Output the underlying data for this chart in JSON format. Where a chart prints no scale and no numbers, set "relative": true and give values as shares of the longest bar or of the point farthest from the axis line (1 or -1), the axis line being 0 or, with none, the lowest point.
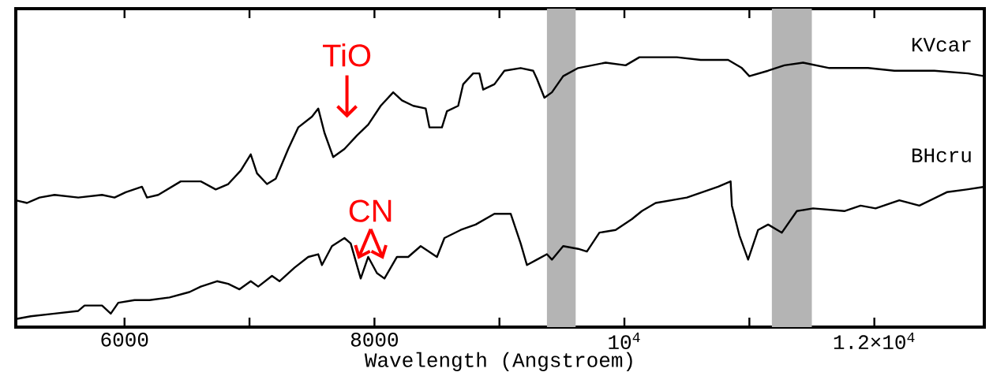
{
  "chart_data": {
    "type": "line",
    "relative": true,
    "xlabel": "Wavelength (Angstroem)",
    "xlim": [
      5130,
      12880
    ],
    "xticks": [
      6000,
      {
        "value": 7000,
        "label": null
      },
      8000,
      {
        "value": 9000,
        "label": null
      },
      {
        "value": 10000,
        "label": "10$^{4}$"
      },
      {
        "value": 11000,
        "label": null
      },
      {
        "value": 12000,
        "label": "1.2×10$^{4}$"
      }
    ],
    "tick_labels": "x",
    "marker": "none",
    "line_style": "solid",
    "bands": [
      {
        "axis": "x",
        "from": 9380,
        "to": 9610,
        "color": "#b4b4b4"
      },
      {
        "axis": "x",
        "from": 11180,
        "to": 11500,
        "color": "#b4b4b4"
      }
    ],
    "annotations": [
      {
        "text": "TiO",
        "x": 7780,
        "y": 0.67
      },
      {
        "text": "CN",
        "x": 7970,
        "y": 0.24
      }
    ],
    "series": [
      {
        "name": "KVcar",
        "color": "#000000",
        "x": [
          5130,
          5220,
          5320,
          5440,
          5630,
          5820,
          5920,
          6010,
          6140,
          6180,
          6270,
          6450,
          6610,
          6730,
          6830,
          6930,
          7010,
          7060,
          7140,
          7210,
          7310,
          7390,
          7500,
          7550,
          7600,
          7670,
          7760,
          7860,
          7950,
          8050,
          8150,
          8220,
          8310,
          8410,
          8440,
          8540,
          8580,
          8670,
          8710,
          8790,
          8840,
          8870,
          8960,
          9040,
          9170,
          9270,
          9300,
          9360,
          9420,
          9510,
          9630,
          9850,
          10010,
          10120,
          10260,
          10420,
          10610,
          10830,
          10940,
          11000,
          11150,
          11280,
          11430,
          11640,
          11950,
          12160,
          12480,
          12750,
          12880
        ],
        "values": [
          0.47,
          0.46,
          0.48,
          0.49,
          0.48,
          0.49,
          0.48,
          0.5,
          0.52,
          0.48,
          0.49,
          0.54,
          0.54,
          0.51,
          0.53,
          0.58,
          0.64,
          0.57,
          0.53,
          0.55,
          0.66,
          0.74,
          0.78,
          0.81,
          0.72,
          0.63,
          0.66,
          0.71,
          0.75,
          0.82,
          0.87,
          0.84,
          0.82,
          0.81,
          0.74,
          0.74,
          0.8,
          0.82,
          0.9,
          0.94,
          0.94,
          0.88,
          0.9,
          0.95,
          0.96,
          0.95,
          0.92,
          0.85,
          0.87,
          0.93,
          0.96,
          0.98,
          0.97,
          1.0,
          1.0,
          1.0,
          0.99,
          0.99,
          0.96,
          0.93,
          0.95,
          0.97,
          0.98,
          0.96,
          0.96,
          0.95,
          0.95,
          0.94,
          0.93
        ]
      },
      {
        "name": "BHcru",
        "color": "#000000",
        "x": [
          5130,
          5250,
          5440,
          5630,
          5680,
          5820,
          5890,
          5950,
          6080,
          6200,
          6360,
          6520,
          6610,
          6740,
          6830,
          6920,
          7010,
          7070,
          7180,
          7240,
          7360,
          7470,
          7550,
          7580,
          7660,
          7760,
          7810,
          7890,
          7950,
          8020,
          8080,
          8180,
          8270,
          8370,
          8500,
          8560,
          8690,
          8810,
          8960,
          9090,
          9170,
          9220,
          9300,
          9380,
          9420,
          9510,
          9630,
          9700,
          9800,
          9930,
          10060,
          10140,
          10250,
          10500,
          10750,
          10850,
          10860,
          10920,
          10990,
          11070,
          11150,
          11260,
          11380,
          11510,
          11760,
          11890,
          12010,
          12200,
          12360,
          12580,
          12740,
          12880
        ],
        "values": [
          0.03,
          0.04,
          0.05,
          0.06,
          0.08,
          0.08,
          0.05,
          0.09,
          0.1,
          0.1,
          0.11,
          0.13,
          0.15,
          0.17,
          0.16,
          0.14,
          0.17,
          0.15,
          0.19,
          0.17,
          0.22,
          0.26,
          0.27,
          0.23,
          0.3,
          0.33,
          0.31,
          0.18,
          0.26,
          0.2,
          0.18,
          0.26,
          0.26,
          0.3,
          0.26,
          0.33,
          0.36,
          0.38,
          0.42,
          0.42,
          0.31,
          0.23,
          0.25,
          0.27,
          0.25,
          0.3,
          0.29,
          0.28,
          0.35,
          0.36,
          0.4,
          0.43,
          0.46,
          0.48,
          0.52,
          0.54,
          0.45,
          0.34,
          0.25,
          0.36,
          0.38,
          0.35,
          0.43,
          0.44,
          0.43,
          0.45,
          0.44,
          0.47,
          0.45,
          0.5,
          0.51,
          0.52
        ]
      }
    ]
  }
}
